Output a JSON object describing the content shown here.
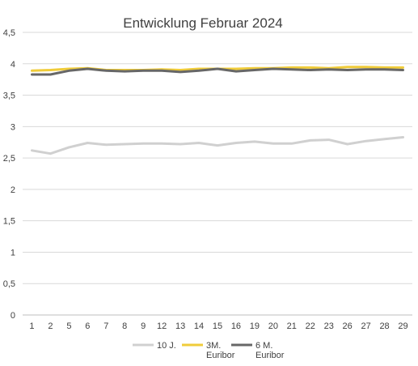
{
  "chart_data": {
    "type": "line",
    "title": "Entwicklung Februar 2024",
    "xlabel": "",
    "ylabel": "",
    "categories": [
      "1",
      "2",
      "5",
      "6",
      "7",
      "8",
      "9",
      "12",
      "13",
      "14",
      "15",
      "16",
      "19",
      "20",
      "21",
      "22",
      "23",
      "26",
      "27",
      "28",
      "29"
    ],
    "y_ticks": [
      "0",
      "0,5",
      "1",
      "1,5",
      "2",
      "2,5",
      "3",
      "3,5",
      "4",
      "4,5"
    ],
    "ylim": [
      0,
      4.5
    ],
    "grid": true,
    "legend_position": "bottom",
    "series": [
      {
        "name": "10 J.",
        "color": "#d0d0d0",
        "values": [
          2.62,
          2.57,
          2.67,
          2.74,
          2.71,
          2.72,
          2.73,
          2.73,
          2.72,
          2.74,
          2.7,
          2.74,
          2.76,
          2.73,
          2.73,
          2.78,
          2.79,
          2.72,
          2.77,
          2.8,
          2.83
        ]
      },
      {
        "name": "3M. Euribor",
        "name_lines": [
          "3M.",
          "Euribor"
        ],
        "color": "#f0cc3a",
        "values": [
          3.89,
          3.9,
          3.92,
          3.93,
          3.9,
          3.9,
          3.9,
          3.91,
          3.9,
          3.92,
          3.92,
          3.92,
          3.93,
          3.93,
          3.94,
          3.94,
          3.93,
          3.95,
          3.95,
          3.94,
          3.94
        ]
      },
      {
        "name": "6 M. Euribor",
        "name_lines": [
          "6 M.",
          "Euribor"
        ],
        "color": "#676767",
        "values": [
          3.83,
          3.83,
          3.89,
          3.92,
          3.89,
          3.88,
          3.89,
          3.89,
          3.87,
          3.89,
          3.92,
          3.88,
          3.9,
          3.92,
          3.91,
          3.9,
          3.91,
          3.9,
          3.91,
          3.91,
          3.9
        ]
      }
    ]
  }
}
